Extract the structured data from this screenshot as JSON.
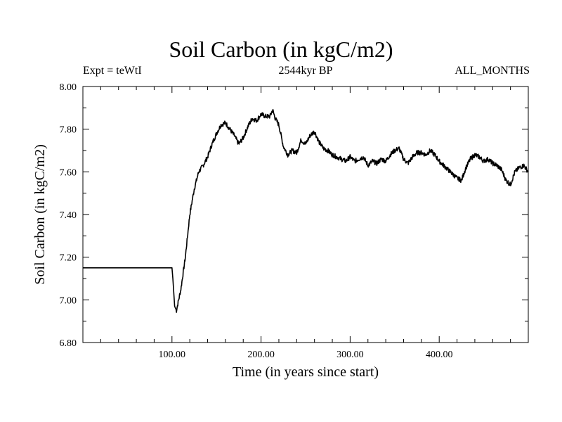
{
  "header": {
    "title": "Soil Carbon (in kgC/m2)",
    "left_label": "Expt = teWtI",
    "center_label": "2544kyr BP",
    "right_label": "ALL_MONTHS"
  },
  "chart_data": {
    "type": "line",
    "title": "Soil Carbon (in kgC/m2)",
    "xlabel": "Time (in years since start)",
    "ylabel": "Soil Carbon (in kgC/m2)",
    "xlim": [
      0,
      500
    ],
    "ylim": [
      6.8,
      8.0
    ],
    "x_ticks": [
      100,
      200,
      300,
      400
    ],
    "x_tick_labels": [
      "100.00",
      "200.00",
      "300.00",
      "400.00"
    ],
    "y_ticks": [
      6.8,
      7.0,
      7.2,
      7.4,
      7.6,
      7.8,
      8.0
    ],
    "y_tick_labels": [
      "6.80",
      "7.00",
      "7.20",
      "7.40",
      "7.60",
      "7.80",
      "8.00"
    ],
    "grid": false,
    "line_color": "#000000",
    "series": [
      {
        "name": "Soil Carbon",
        "x": [
          0,
          100,
          101,
          103,
          105,
          110,
          115,
          120,
          125,
          130,
          135,
          140,
          145,
          150,
          155,
          160,
          165,
          170,
          175,
          180,
          185,
          190,
          195,
          200,
          205,
          210,
          213,
          216,
          220,
          225,
          230,
          235,
          240,
          245,
          250,
          255,
          260,
          265,
          270,
          275,
          280,
          285,
          290,
          295,
          300,
          305,
          310,
          315,
          320,
          325,
          330,
          335,
          340,
          345,
          350,
          355,
          360,
          365,
          370,
          375,
          380,
          385,
          390,
          395,
          400,
          405,
          410,
          415,
          420,
          425,
          430,
          435,
          440,
          445,
          450,
          455,
          460,
          465,
          470,
          475,
          480,
          485,
          490,
          495,
          500
        ],
        "values": [
          7.15,
          7.15,
          7.1,
          6.97,
          6.95,
          7.05,
          7.2,
          7.4,
          7.52,
          7.6,
          7.63,
          7.67,
          7.73,
          7.78,
          7.82,
          7.83,
          7.8,
          7.77,
          7.73,
          7.76,
          7.81,
          7.85,
          7.84,
          7.87,
          7.86,
          7.86,
          7.89,
          7.85,
          7.82,
          7.72,
          7.68,
          7.7,
          7.69,
          7.75,
          7.73,
          7.77,
          7.79,
          7.74,
          7.71,
          7.7,
          7.68,
          7.67,
          7.66,
          7.65,
          7.67,
          7.65,
          7.66,
          7.67,
          7.63,
          7.65,
          7.64,
          7.66,
          7.65,
          7.68,
          7.7,
          7.71,
          7.66,
          7.64,
          7.67,
          7.69,
          7.69,
          7.68,
          7.7,
          7.68,
          7.65,
          7.63,
          7.61,
          7.59,
          7.57,
          7.56,
          7.62,
          7.66,
          7.68,
          7.67,
          7.65,
          7.66,
          7.64,
          7.63,
          7.61,
          7.56,
          7.54,
          7.6,
          7.62,
          7.63,
          7.6
        ]
      }
    ]
  }
}
